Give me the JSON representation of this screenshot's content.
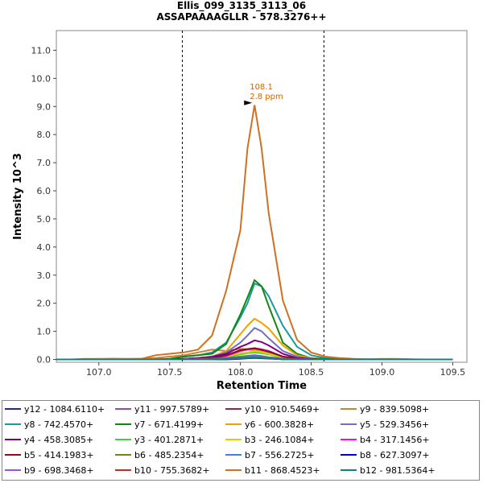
{
  "chart_data": {
    "type": "line",
    "title": "Ellis_099_3135_3113_06",
    "subtitle": "ASSAPAAAAGLLR - 578.3276++",
    "xlabel": "Retention Time",
    "ylabel": "Intensity 10^3",
    "xlim": [
      106.7,
      109.6
    ],
    "ylim": [
      -0.1,
      11.7
    ],
    "x_ticks": [
      107.0,
      107.5,
      108.0,
      108.5,
      109.0,
      109.5
    ],
    "y_ticks": [
      0.0,
      1.0,
      2.0,
      3.0,
      4.0,
      5.0,
      6.0,
      7.0,
      8.0,
      9.0,
      10.0,
      11.0
    ],
    "x_tick_labels": [
      "107.0",
      "107.5",
      "108.0",
      "108.5",
      "109.0",
      "109.5"
    ],
    "y_tick_labels": [
      "0.0",
      "1.0",
      "2.0",
      "3.0",
      "4.0",
      "5.0",
      "6.0",
      "7.0",
      "8.0",
      "9.0",
      "10.0",
      "11.0"
    ],
    "boundary_lines": [
      107.59,
      108.59
    ],
    "grid": false,
    "legend_position": "bottom",
    "annotation": {
      "x": 108.1,
      "y": 9.1,
      "label_rt": "108.1",
      "label_ppm": "2.8 ppm",
      "color": "#cc6600"
    },
    "x": [
      106.7,
      106.8,
      106.9,
      107.0,
      107.1,
      107.2,
      107.3,
      107.4,
      107.5,
      107.6,
      107.7,
      107.8,
      107.9,
      108.0,
      108.05,
      108.1,
      108.15,
      108.2,
      108.3,
      108.4,
      108.5,
      108.6,
      108.7,
      108.8,
      108.9,
      109.0,
      109.1,
      109.2,
      109.3,
      109.4,
      109.5
    ],
    "series": [
      {
        "name": "y12 - 1084.6110+",
        "color": "#1f1fd6",
        "values": [
          0,
          0,
          0,
          0,
          0,
          0,
          0,
          0,
          0,
          0,
          0,
          0,
          0,
          0.02,
          0.04,
          0.05,
          0.04,
          0.03,
          0.01,
          0,
          0,
          0,
          0,
          0,
          0,
          0,
          0,
          0,
          0,
          0,
          0
        ]
      },
      {
        "name": "y11 - 997.5789+",
        "color": "#9f3fd0",
        "values": [
          0,
          0,
          0,
          0,
          0,
          0,
          0,
          0,
          0,
          0,
          0,
          0.02,
          0.06,
          0.1,
          0.13,
          0.15,
          0.12,
          0.08,
          0.03,
          0.01,
          0,
          0,
          0,
          0,
          0,
          0,
          0,
          0,
          0,
          0,
          0
        ]
      },
      {
        "name": "y10 - 910.5469+",
        "color": "#a02040",
        "values": [
          0,
          0,
          0,
          0,
          0,
          0,
          0,
          0,
          0,
          0,
          0.02,
          0.05,
          0.15,
          0.3,
          0.35,
          0.35,
          0.3,
          0.22,
          0.08,
          0.03,
          0,
          0,
          0,
          0,
          0,
          0,
          0,
          0,
          0,
          0,
          0
        ]
      },
      {
        "name": "y9 - 839.5098+",
        "color": "#d08030",
        "values": [
          0,
          0,
          0.02,
          0.02,
          0.03,
          0.02,
          0.03,
          0.05,
          0.1,
          0.15,
          0.25,
          0.35,
          0.3,
          0.38,
          0.36,
          0.33,
          0.3,
          0.2,
          0.1,
          0.05,
          0.02,
          0.02,
          0.01,
          0,
          0.01,
          0.02,
          0.02,
          0.01,
          0,
          0,
          0
        ]
      },
      {
        "name": "y8 - 742.4570+",
        "color": "#1a9aa0",
        "values": [
          0,
          0,
          0,
          0,
          0,
          0,
          0,
          0,
          0.02,
          0.1,
          0.15,
          0.25,
          0.6,
          1.5,
          2.0,
          2.7,
          2.6,
          2.25,
          1.2,
          0.45,
          0.15,
          0.05,
          0.02,
          0,
          0,
          0,
          0,
          0,
          0,
          0,
          0
        ]
      },
      {
        "name": "y7 - 671.4199+",
        "color": "#118811",
        "values": [
          0,
          0,
          0,
          0,
          0,
          0,
          0,
          0,
          0.02,
          0.1,
          0.15,
          0.2,
          0.55,
          1.6,
          2.2,
          2.82,
          2.6,
          1.9,
          0.6,
          0.2,
          0.05,
          0.02,
          0,
          0,
          0,
          0,
          0,
          0,
          0,
          0,
          0
        ]
      },
      {
        "name": "y6 - 600.3828+",
        "color": "#f0a000",
        "values": [
          0,
          0,
          0,
          0,
          0,
          0,
          0,
          0,
          0,
          0.02,
          0.05,
          0.1,
          0.3,
          0.9,
          1.2,
          1.45,
          1.3,
          1.1,
          0.5,
          0.15,
          0.05,
          0,
          0,
          0,
          0,
          0,
          0,
          0,
          0,
          0,
          0
        ]
      },
      {
        "name": "y5 - 529.3456+",
        "color": "#7070c0",
        "values": [
          0,
          0,
          0,
          0,
          0,
          0,
          0,
          0,
          0,
          0.02,
          0.05,
          0.1,
          0.25,
          0.6,
          0.85,
          1.12,
          1.0,
          0.75,
          0.3,
          0.1,
          0.03,
          0,
          0,
          0,
          0,
          0,
          0,
          0,
          0,
          0,
          0
        ]
      },
      {
        "name": "y4 - 458.3085+",
        "color": "#800080",
        "values": [
          0,
          0,
          0,
          0,
          0,
          0,
          0,
          0,
          0,
          0.02,
          0.05,
          0.1,
          0.2,
          0.45,
          0.55,
          0.68,
          0.62,
          0.5,
          0.2,
          0.05,
          0.02,
          0,
          0,
          0,
          0,
          0,
          0,
          0,
          0,
          0,
          0
        ]
      },
      {
        "name": "y3 - 401.2871+",
        "color": "#40d040",
        "values": [
          0,
          0,
          0,
          0,
          0,
          0,
          0,
          0,
          0,
          0,
          0.02,
          0.05,
          0.1,
          0.18,
          0.22,
          0.25,
          0.22,
          0.18,
          0.06,
          0.02,
          0,
          0,
          0,
          0,
          0,
          0,
          0,
          0,
          0,
          0,
          0
        ]
      },
      {
        "name": "b3 - 246.1084+",
        "color": "#e0d000",
        "values": [
          0,
          0,
          0,
          0,
          0,
          0,
          0,
          0,
          0,
          0,
          0.02,
          0.05,
          0.1,
          0.22,
          0.25,
          0.3,
          0.26,
          0.2,
          0.08,
          0.02,
          0,
          0,
          0,
          0,
          0,
          0,
          0,
          0,
          0,
          0,
          0
        ]
      },
      {
        "name": "b4 - 317.1456+",
        "color": "#ff00ff",
        "values": [
          0,
          0,
          0,
          0,
          0,
          0,
          0,
          0,
          0,
          0,
          0.02,
          0.05,
          0.12,
          0.3,
          0.35,
          0.4,
          0.36,
          0.3,
          0.1,
          0.03,
          0,
          0,
          0,
          0,
          0,
          0,
          0,
          0,
          0,
          0,
          0
        ]
      },
      {
        "name": "b5 - 414.1983+",
        "color": "#801020",
        "values": [
          0,
          0,
          0,
          0,
          0,
          0,
          0,
          0,
          0,
          0,
          0.02,
          0.05,
          0.15,
          0.33,
          0.37,
          0.4,
          0.34,
          0.28,
          0.1,
          0.03,
          0,
          0,
          0,
          0,
          0,
          0,
          0,
          0,
          0,
          0,
          0
        ]
      },
      {
        "name": "b6 - 485.2354+",
        "color": "#6a8a10",
        "values": [
          0,
          0,
          0,
          0,
          0,
          0,
          0,
          0,
          0,
          0,
          0.01,
          0.02,
          0.05,
          0.1,
          0.11,
          0.12,
          0.1,
          0.08,
          0.03,
          0.01,
          0,
          0,
          0,
          0,
          0,
          0,
          0,
          0,
          0,
          0,
          0
        ]
      },
      {
        "name": "b7 - 556.2725+",
        "color": "#4a80d0",
        "values": [
          0,
          0,
          0,
          0,
          0,
          0,
          0,
          0,
          0,
          0,
          0.01,
          0.02,
          0.04,
          0.08,
          0.09,
          0.1,
          0.09,
          0.07,
          0.02,
          0.01,
          0,
          0,
          0,
          0,
          0,
          0,
          0,
          0,
          0,
          0,
          0
        ]
      },
      {
        "name": "b8 - 627.3097+",
        "color": "#0000c0",
        "values": [
          0,
          0,
          0,
          0,
          0,
          0,
          0,
          0,
          0,
          0,
          0,
          0.01,
          0.02,
          0.04,
          0.05,
          0.06,
          0.05,
          0.04,
          0.01,
          0,
          0,
          0,
          0,
          0,
          0,
          0,
          0,
          0,
          0,
          0,
          0
        ]
      },
      {
        "name": "b9 - 698.3468+",
        "color": "#a050d0",
        "values": [
          0,
          0,
          0,
          0,
          0,
          0,
          0,
          0,
          0,
          0,
          0,
          0.01,
          0.03,
          0.06,
          0.07,
          0.08,
          0.07,
          0.05,
          0.02,
          0,
          0,
          0,
          0,
          0,
          0,
          0,
          0,
          0,
          0,
          0,
          0
        ]
      },
      {
        "name": "b10 - 755.3682+",
        "color": "#b03030",
        "values": [
          0,
          0,
          0,
          0,
          0,
          0,
          0,
          0,
          0,
          0,
          0,
          0.01,
          0.02,
          0.05,
          0.06,
          0.07,
          0.06,
          0.04,
          0.01,
          0,
          0,
          0,
          0,
          0,
          0,
          0,
          0,
          0,
          0,
          0,
          0
        ]
      },
      {
        "name": "b11 - 868.4523+",
        "color": "#d07020",
        "values": [
          0,
          0,
          0,
          0,
          0,
          0.01,
          0.02,
          0.15,
          0.2,
          0.25,
          0.35,
          0.85,
          2.45,
          4.6,
          7.5,
          9.05,
          7.5,
          5.2,
          2.1,
          0.7,
          0.25,
          0.1,
          0.05,
          0.02,
          0.01,
          0,
          0,
          0,
          0,
          0,
          0
        ]
      },
      {
        "name": "b12 - 981.5364+",
        "color": "#108080",
        "values": [
          0,
          0,
          0,
          0,
          0,
          0,
          0,
          0,
          0,
          0,
          0,
          0.01,
          0.02,
          0.04,
          0.05,
          0.06,
          0.05,
          0.04,
          0.01,
          0,
          0,
          0,
          0,
          0,
          0,
          0,
          0,
          0,
          0,
          0,
          0
        ]
      }
    ]
  }
}
